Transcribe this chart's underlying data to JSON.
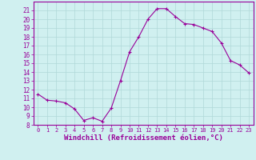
{
  "x": [
    0,
    1,
    2,
    3,
    4,
    5,
    6,
    7,
    8,
    9,
    10,
    11,
    12,
    13,
    14,
    15,
    16,
    17,
    18,
    19,
    20,
    21,
    22,
    23
  ],
  "y": [
    11.5,
    10.8,
    10.7,
    10.5,
    9.8,
    8.5,
    8.8,
    8.4,
    9.9,
    13.0,
    16.3,
    18.0,
    20.0,
    21.2,
    21.2,
    20.3,
    19.5,
    19.4,
    19.0,
    18.6,
    17.3,
    15.3,
    14.8,
    13.9
  ],
  "line_color": "#990099",
  "marker": "+",
  "bg_color": "#d0f0f0",
  "grid_color": "#b0d8d8",
  "xlabel": "Windchill (Refroidissement éolien,°C)",
  "xlabel_color": "#990099",
  "xlim": [
    -0.5,
    23.5
  ],
  "ylim": [
    8,
    22
  ],
  "yticks": [
    8,
    9,
    10,
    11,
    12,
    13,
    14,
    15,
    16,
    17,
    18,
    19,
    20,
    21
  ],
  "xticks": [
    0,
    1,
    2,
    3,
    4,
    5,
    6,
    7,
    8,
    9,
    10,
    11,
    12,
    13,
    14,
    15,
    16,
    17,
    18,
    19,
    20,
    21,
    22,
    23
  ],
  "xtick_fontsize": 5.0,
  "ytick_fontsize": 5.5,
  "xlabel_size": 6.5,
  "axis_color": "#990099",
  "linewidth": 0.8,
  "markersize": 3.0,
  "markeredgewidth": 0.8
}
